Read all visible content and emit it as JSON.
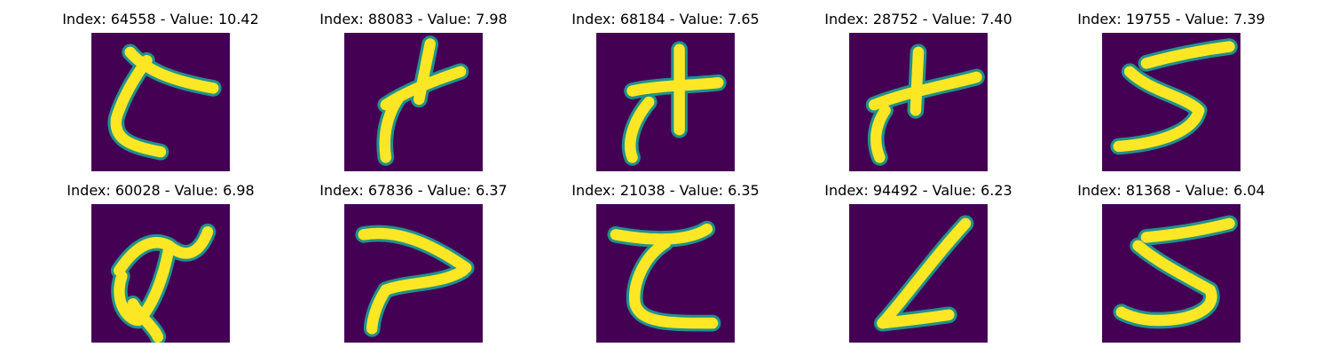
{
  "colors": {
    "background": "#440154",
    "stroke_core": "#fde725",
    "stroke_edge": "#21918c"
  },
  "panels": [
    {
      "title": "Index: 64558 - Value: 10.42",
      "glyph": "stroke-glyph-1"
    },
    {
      "title": "Index: 88083 - Value: 7.98",
      "glyph": "stroke-glyph-2"
    },
    {
      "title": "Index: 68184 - Value: 7.65",
      "glyph": "stroke-glyph-3"
    },
    {
      "title": "Index: 28752 - Value: 7.40",
      "glyph": "stroke-glyph-4"
    },
    {
      "title": "Index: 19755 - Value: 7.39",
      "glyph": "stroke-glyph-5"
    },
    {
      "title": "Index: 60028 - Value: 6.98",
      "glyph": "stroke-glyph-6"
    },
    {
      "title": "Index: 67836 - Value: 6.37",
      "glyph": "stroke-glyph-7"
    },
    {
      "title": "Index: 21038 - Value: 6.35",
      "glyph": "stroke-glyph-8"
    },
    {
      "title": "Index: 94492 - Value: 6.23",
      "glyph": "stroke-glyph-9"
    },
    {
      "title": "Index: 81368 - Value: 6.04",
      "glyph": "stroke-glyph-10"
    }
  ]
}
